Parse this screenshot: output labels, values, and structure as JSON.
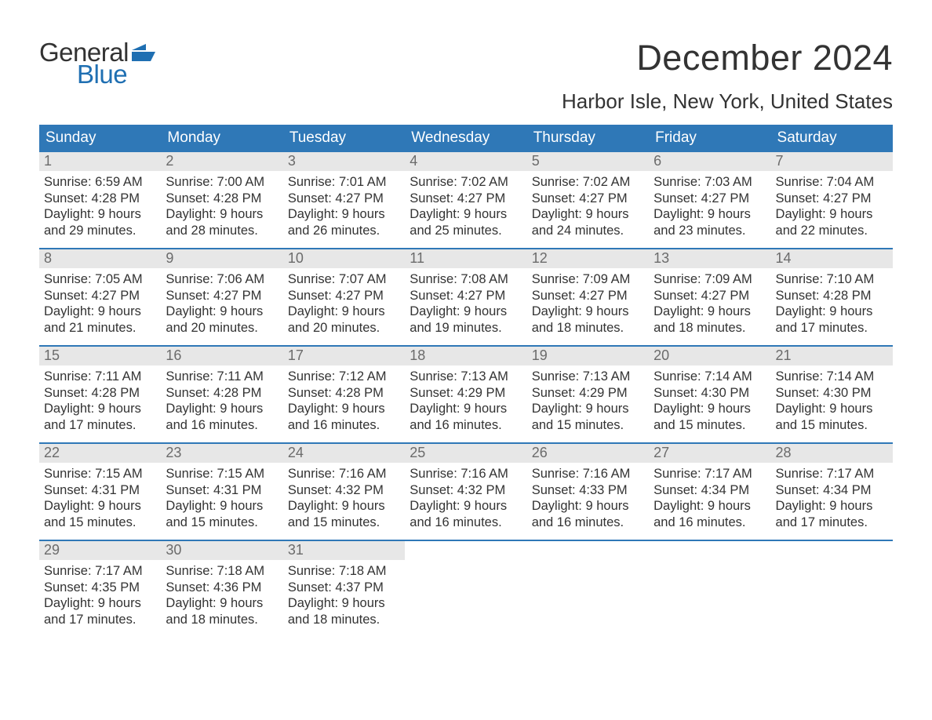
{
  "brand": {
    "word1": "General",
    "word2": "Blue",
    "flag_color": "#1f6fb2"
  },
  "title": "December 2024",
  "location": "Harbor Isle, New York, United States",
  "colors": {
    "header_bg": "#2f78b7",
    "header_text": "#ffffff",
    "daynum_bg": "#e7e7e7",
    "daynum_text": "#6b6b6b",
    "body_text": "#333333",
    "week_border": "#2f78b7",
    "background": "#ffffff"
  },
  "typography": {
    "title_fontsize": 45,
    "location_fontsize": 26,
    "dow_fontsize": 19,
    "daynum_fontsize": 18,
    "body_fontsize": 16.5,
    "logo_fontsize": 33
  },
  "days_of_week": [
    "Sunday",
    "Monday",
    "Tuesday",
    "Wednesday",
    "Thursday",
    "Friday",
    "Saturday"
  ],
  "weeks": [
    [
      {
        "n": "1",
        "sunrise": "Sunrise: 6:59 AM",
        "sunset": "Sunset: 4:28 PM",
        "d1": "Daylight: 9 hours",
        "d2": "and 29 minutes."
      },
      {
        "n": "2",
        "sunrise": "Sunrise: 7:00 AM",
        "sunset": "Sunset: 4:28 PM",
        "d1": "Daylight: 9 hours",
        "d2": "and 28 minutes."
      },
      {
        "n": "3",
        "sunrise": "Sunrise: 7:01 AM",
        "sunset": "Sunset: 4:27 PM",
        "d1": "Daylight: 9 hours",
        "d2": "and 26 minutes."
      },
      {
        "n": "4",
        "sunrise": "Sunrise: 7:02 AM",
        "sunset": "Sunset: 4:27 PM",
        "d1": "Daylight: 9 hours",
        "d2": "and 25 minutes."
      },
      {
        "n": "5",
        "sunrise": "Sunrise: 7:02 AM",
        "sunset": "Sunset: 4:27 PM",
        "d1": "Daylight: 9 hours",
        "d2": "and 24 minutes."
      },
      {
        "n": "6",
        "sunrise": "Sunrise: 7:03 AM",
        "sunset": "Sunset: 4:27 PM",
        "d1": "Daylight: 9 hours",
        "d2": "and 23 minutes."
      },
      {
        "n": "7",
        "sunrise": "Sunrise: 7:04 AM",
        "sunset": "Sunset: 4:27 PM",
        "d1": "Daylight: 9 hours",
        "d2": "and 22 minutes."
      }
    ],
    [
      {
        "n": "8",
        "sunrise": "Sunrise: 7:05 AM",
        "sunset": "Sunset: 4:27 PM",
        "d1": "Daylight: 9 hours",
        "d2": "and 21 minutes."
      },
      {
        "n": "9",
        "sunrise": "Sunrise: 7:06 AM",
        "sunset": "Sunset: 4:27 PM",
        "d1": "Daylight: 9 hours",
        "d2": "and 20 minutes."
      },
      {
        "n": "10",
        "sunrise": "Sunrise: 7:07 AM",
        "sunset": "Sunset: 4:27 PM",
        "d1": "Daylight: 9 hours",
        "d2": "and 20 minutes."
      },
      {
        "n": "11",
        "sunrise": "Sunrise: 7:08 AM",
        "sunset": "Sunset: 4:27 PM",
        "d1": "Daylight: 9 hours",
        "d2": "and 19 minutes."
      },
      {
        "n": "12",
        "sunrise": "Sunrise: 7:09 AM",
        "sunset": "Sunset: 4:27 PM",
        "d1": "Daylight: 9 hours",
        "d2": "and 18 minutes."
      },
      {
        "n": "13",
        "sunrise": "Sunrise: 7:09 AM",
        "sunset": "Sunset: 4:27 PM",
        "d1": "Daylight: 9 hours",
        "d2": "and 18 minutes."
      },
      {
        "n": "14",
        "sunrise": "Sunrise: 7:10 AM",
        "sunset": "Sunset: 4:28 PM",
        "d1": "Daylight: 9 hours",
        "d2": "and 17 minutes."
      }
    ],
    [
      {
        "n": "15",
        "sunrise": "Sunrise: 7:11 AM",
        "sunset": "Sunset: 4:28 PM",
        "d1": "Daylight: 9 hours",
        "d2": "and 17 minutes."
      },
      {
        "n": "16",
        "sunrise": "Sunrise: 7:11 AM",
        "sunset": "Sunset: 4:28 PM",
        "d1": "Daylight: 9 hours",
        "d2": "and 16 minutes."
      },
      {
        "n": "17",
        "sunrise": "Sunrise: 7:12 AM",
        "sunset": "Sunset: 4:28 PM",
        "d1": "Daylight: 9 hours",
        "d2": "and 16 minutes."
      },
      {
        "n": "18",
        "sunrise": "Sunrise: 7:13 AM",
        "sunset": "Sunset: 4:29 PM",
        "d1": "Daylight: 9 hours",
        "d2": "and 16 minutes."
      },
      {
        "n": "19",
        "sunrise": "Sunrise: 7:13 AM",
        "sunset": "Sunset: 4:29 PM",
        "d1": "Daylight: 9 hours",
        "d2": "and 15 minutes."
      },
      {
        "n": "20",
        "sunrise": "Sunrise: 7:14 AM",
        "sunset": "Sunset: 4:30 PM",
        "d1": "Daylight: 9 hours",
        "d2": "and 15 minutes."
      },
      {
        "n": "21",
        "sunrise": "Sunrise: 7:14 AM",
        "sunset": "Sunset: 4:30 PM",
        "d1": "Daylight: 9 hours",
        "d2": "and 15 minutes."
      }
    ],
    [
      {
        "n": "22",
        "sunrise": "Sunrise: 7:15 AM",
        "sunset": "Sunset: 4:31 PM",
        "d1": "Daylight: 9 hours",
        "d2": "and 15 minutes."
      },
      {
        "n": "23",
        "sunrise": "Sunrise: 7:15 AM",
        "sunset": "Sunset: 4:31 PM",
        "d1": "Daylight: 9 hours",
        "d2": "and 15 minutes."
      },
      {
        "n": "24",
        "sunrise": "Sunrise: 7:16 AM",
        "sunset": "Sunset: 4:32 PM",
        "d1": "Daylight: 9 hours",
        "d2": "and 15 minutes."
      },
      {
        "n": "25",
        "sunrise": "Sunrise: 7:16 AM",
        "sunset": "Sunset: 4:32 PM",
        "d1": "Daylight: 9 hours",
        "d2": "and 16 minutes."
      },
      {
        "n": "26",
        "sunrise": "Sunrise: 7:16 AM",
        "sunset": "Sunset: 4:33 PM",
        "d1": "Daylight: 9 hours",
        "d2": "and 16 minutes."
      },
      {
        "n": "27",
        "sunrise": "Sunrise: 7:17 AM",
        "sunset": "Sunset: 4:34 PM",
        "d1": "Daylight: 9 hours",
        "d2": "and 16 minutes."
      },
      {
        "n": "28",
        "sunrise": "Sunrise: 7:17 AM",
        "sunset": "Sunset: 4:34 PM",
        "d1": "Daylight: 9 hours",
        "d2": "and 17 minutes."
      }
    ],
    [
      {
        "n": "29",
        "sunrise": "Sunrise: 7:17 AM",
        "sunset": "Sunset: 4:35 PM",
        "d1": "Daylight: 9 hours",
        "d2": "and 17 minutes."
      },
      {
        "n": "30",
        "sunrise": "Sunrise: 7:18 AM",
        "sunset": "Sunset: 4:36 PM",
        "d1": "Daylight: 9 hours",
        "d2": "and 18 minutes."
      },
      {
        "n": "31",
        "sunrise": "Sunrise: 7:18 AM",
        "sunset": "Sunset: 4:37 PM",
        "d1": "Daylight: 9 hours",
        "d2": "and 18 minutes."
      },
      {
        "empty": true
      },
      {
        "empty": true
      },
      {
        "empty": true
      },
      {
        "empty": true
      }
    ]
  ]
}
